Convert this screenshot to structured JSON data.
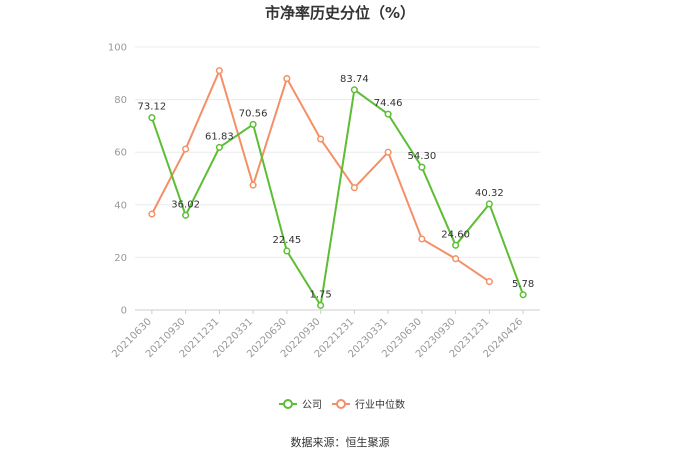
{
  "chart_data": {
    "type": "line",
    "title": "市净率历史分位（%）",
    "categories": [
      "20210630",
      "20210930",
      "20211231",
      "20220331",
      "20220630",
      "20220930",
      "20221231",
      "20230331",
      "20230630",
      "20230930",
      "20231231",
      "20240426"
    ],
    "ylim": [
      0,
      100
    ],
    "yticks": [
      "0",
      "20",
      "40",
      "60",
      "80",
      "100"
    ],
    "grid": true,
    "legend_position": "bottom",
    "series": [
      {
        "name": "公司",
        "color": "#5dbe35",
        "values": [
          73.12,
          36.02,
          61.83,
          70.56,
          22.45,
          1.75,
          83.74,
          74.46,
          54.3,
          24.6,
          40.32,
          5.78
        ],
        "labels": [
          "73.12",
          "36.02",
          "61.83",
          "70.56",
          "22.45",
          "1.75",
          "83.74",
          "74.46",
          "54.30",
          "24.60",
          "40.32",
          "5.78"
        ]
      },
      {
        "name": "行业中位数",
        "color": "#f39067",
        "values": [
          36.5,
          61.2,
          91.0,
          47.5,
          88.0,
          65.0,
          46.5,
          60.0,
          27.0,
          19.5,
          10.8,
          null
        ]
      }
    ]
  },
  "source_text": "数据来源：恒生聚源"
}
